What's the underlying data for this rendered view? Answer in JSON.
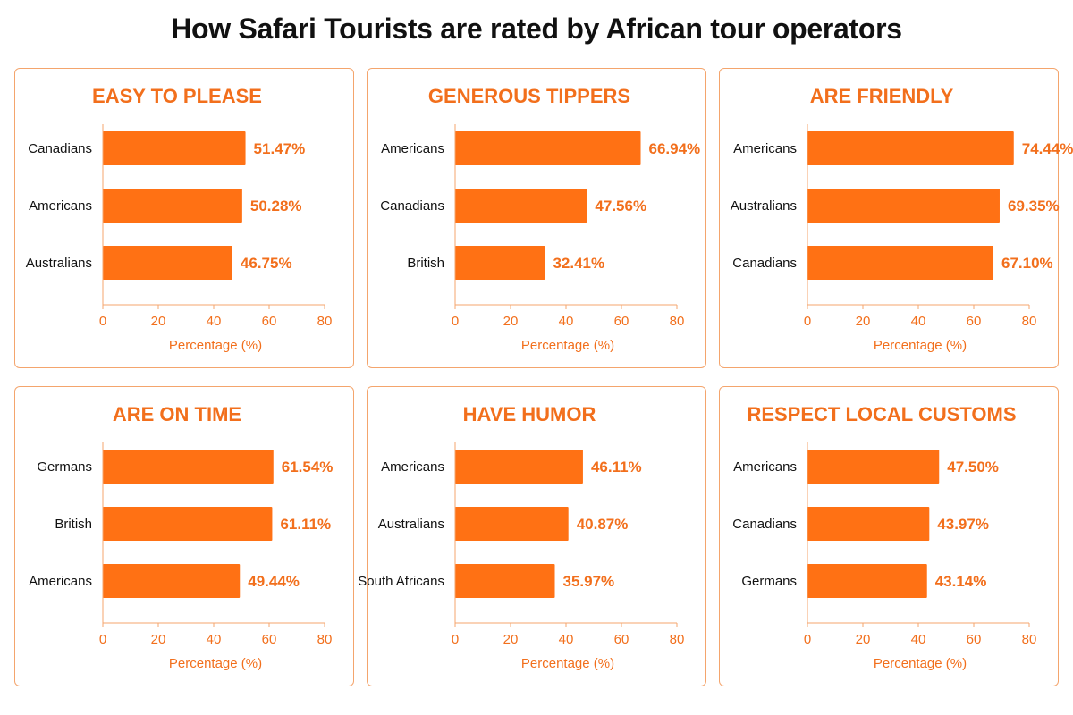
{
  "title": "How Safari Tourists are rated by African tour operators",
  "colors": {
    "bar": "#ff7114",
    "accent": "#f26f1c",
    "border": "#f4a56d"
  },
  "chart_data": [
    {
      "type": "bar",
      "orientation": "horizontal",
      "title": "EASY TO PLEASE",
      "categories": [
        "Canadians",
        "Americans",
        "Australians"
      ],
      "values": [
        51.47,
        50.28,
        46.75
      ],
      "value_labels": [
        "51.47%",
        "50.28%",
        "46.75%"
      ],
      "xlabel": "Percentage (%)",
      "xlim": [
        0,
        80
      ],
      "xticks": [
        0,
        20,
        40,
        60,
        80
      ]
    },
    {
      "type": "bar",
      "orientation": "horizontal",
      "title": "GENEROUS TIPPERS",
      "categories": [
        "Americans",
        "Canadians",
        "British"
      ],
      "values": [
        66.94,
        47.56,
        32.41
      ],
      "value_labels": [
        "66.94%",
        "47.56%",
        "32.41%"
      ],
      "xlabel": "Percentage (%)",
      "xlim": [
        0,
        80
      ],
      "xticks": [
        0,
        20,
        40,
        60,
        80
      ]
    },
    {
      "type": "bar",
      "orientation": "horizontal",
      "title": "ARE FRIENDLY",
      "categories": [
        "Americans",
        "Australians",
        "Canadians"
      ],
      "values": [
        74.44,
        69.35,
        67.1
      ],
      "value_labels": [
        "74.44%",
        "69.35%",
        "67.10%"
      ],
      "xlabel": "Percentage (%)",
      "xlim": [
        0,
        80
      ],
      "xticks": [
        0,
        20,
        40,
        60,
        80
      ]
    },
    {
      "type": "bar",
      "orientation": "horizontal",
      "title": "ARE ON TIME",
      "categories": [
        "Germans",
        "British",
        "Americans"
      ],
      "values": [
        61.54,
        61.11,
        49.44
      ],
      "value_labels": [
        "61.54%",
        "61.11%",
        "49.44%"
      ],
      "xlabel": "Percentage (%)",
      "xlim": [
        0,
        80
      ],
      "xticks": [
        0,
        20,
        40,
        60,
        80
      ]
    },
    {
      "type": "bar",
      "orientation": "horizontal",
      "title": "HAVE HUMOR",
      "categories": [
        "Americans",
        "Australians",
        "South Africans"
      ],
      "values": [
        46.11,
        40.87,
        35.97
      ],
      "value_labels": [
        "46.11%",
        "40.87%",
        "35.97%"
      ],
      "xlabel": "Percentage (%)",
      "xlim": [
        0,
        80
      ],
      "xticks": [
        0,
        20,
        40,
        60,
        80
      ]
    },
    {
      "type": "bar",
      "orientation": "horizontal",
      "title": "RESPECT LOCAL CUSTOMS",
      "categories": [
        "Americans",
        "Canadians",
        "Germans"
      ],
      "values": [
        47.5,
        43.97,
        43.14
      ],
      "value_labels": [
        "47.50%",
        "43.97%",
        "43.14%"
      ],
      "xlabel": "Percentage (%)",
      "xlim": [
        0,
        80
      ],
      "xticks": [
        0,
        20,
        40,
        60,
        80
      ]
    }
  ]
}
